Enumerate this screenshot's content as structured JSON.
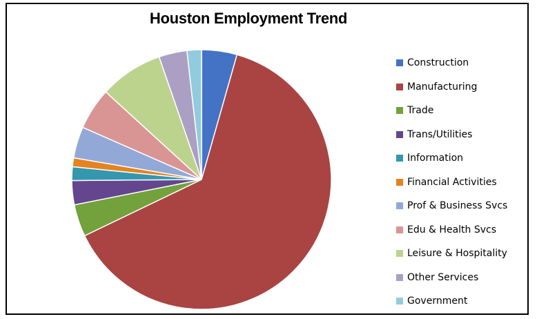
{
  "chart_data": {
    "type": "pie",
    "title": "Houston Employment Trend",
    "categories": [
      "Construction",
      "Manufacturing",
      "Trade",
      "Trans/Utilities",
      "Information",
      "Financial Activities",
      "Prof & Business Svcs",
      "Edu & Health Svcs",
      "Leisure & Hospitality",
      "Other Services",
      "Government"
    ],
    "values": [
      4.4,
      63.4,
      4.0,
      3.0,
      1.7,
      1.1,
      3.9,
      5.2,
      7.9,
      3.5,
      1.8
    ],
    "colors": [
      "#4472C4",
      "#A94442",
      "#73A13C",
      "#64468E",
      "#3497AE",
      "#E4831F",
      "#92A9D8",
      "#D99594",
      "#BCD38E",
      "#ABA0C4",
      "#92CBDD"
    ],
    "start_angle_deg": 0,
    "direction": "clockwise",
    "legend_position": "right"
  }
}
